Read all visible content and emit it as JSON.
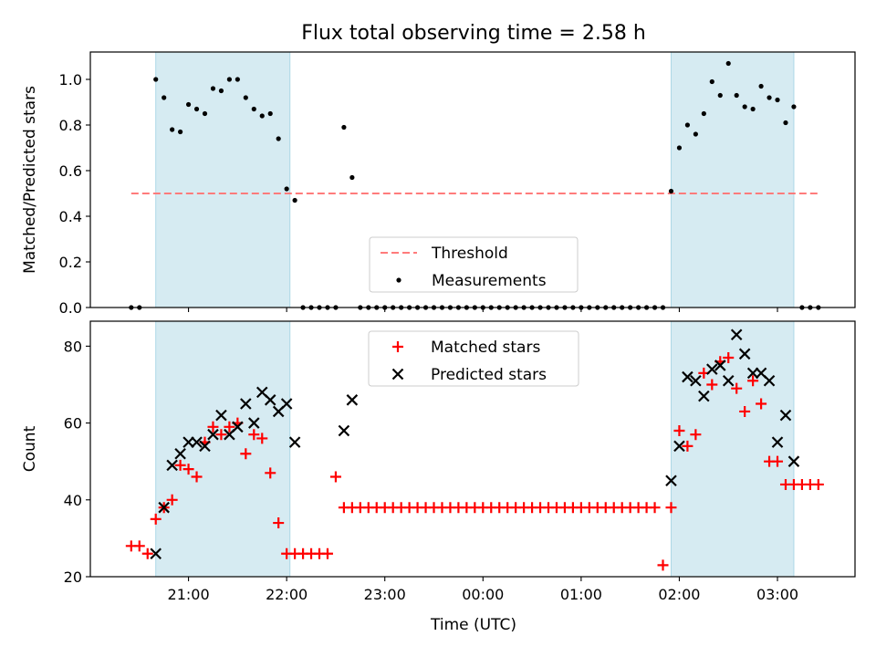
{
  "title": "Flux total observing time = 2.58 h",
  "colors": {
    "shade": "#add8e6",
    "threshold": "#ff7b7b",
    "measurement": "#000000",
    "matched": "#ff0000",
    "predicted": "#000000"
  },
  "chart_data": [
    {
      "type": "scatter",
      "ylabel": "Matched/Predicted stars",
      "ylim": [
        0,
        1.12
      ],
      "xlim_hours": [
        20.0,
        27.79
      ],
      "yticks": [
        0.0,
        0.2,
        0.4,
        0.6,
        0.8,
        1.0
      ],
      "ytick_labels": [
        "0.0",
        "0.2",
        "0.4",
        "0.6",
        "0.8",
        "1.0"
      ],
      "shaded_regions": [
        [
          "20:40",
          "22:02"
        ],
        [
          "01:55",
          "03:10"
        ]
      ],
      "legend": {
        "placement": "lower-center",
        "entries": [
          "Threshold",
          "Measurements"
        ]
      },
      "series": [
        {
          "name": "Threshold",
          "style": "dashed-line",
          "x": [
            "20:25",
            "03:25"
          ],
          "values": [
            0.5,
            0.5
          ]
        },
        {
          "name": "Measurements",
          "style": "dots",
          "x": [
            "20:25",
            "20:30",
            "20:40",
            "20:45",
            "20:50",
            "20:55",
            "21:00",
            "21:05",
            "21:10",
            "21:15",
            "21:20",
            "21:25",
            "21:30",
            "21:35",
            "21:40",
            "21:45",
            "21:50",
            "21:55",
            "22:00",
            "22:05",
            "22:10",
            "22:15",
            "22:20",
            "22:25",
            "22:30",
            "22:35",
            "22:40",
            "22:45",
            "22:50",
            "22:55",
            "23:00",
            "23:05",
            "23:10",
            "23:15",
            "23:20",
            "23:25",
            "23:30",
            "23:35",
            "23:40",
            "23:45",
            "23:50",
            "23:55",
            "00:00",
            "00:05",
            "00:10",
            "00:15",
            "00:20",
            "00:25",
            "00:30",
            "00:35",
            "00:40",
            "00:45",
            "00:50",
            "00:55",
            "01:00",
            "01:05",
            "01:10",
            "01:15",
            "01:20",
            "01:25",
            "01:30",
            "01:35",
            "01:40",
            "01:45",
            "01:50",
            "01:55",
            "02:00",
            "02:05",
            "02:10",
            "02:15",
            "02:20",
            "02:25",
            "02:30",
            "02:35",
            "02:40",
            "02:45",
            "02:50",
            "02:55",
            "03:00",
            "03:05",
            "03:10",
            "03:15",
            "03:20",
            "03:25"
          ],
          "values": [
            0,
            0,
            1.0,
            0.92,
            0.78,
            0.77,
            0.89,
            0.87,
            0.85,
            0.96,
            0.95,
            1.0,
            1.0,
            0.92,
            0.87,
            0.84,
            0.85,
            0.74,
            0.52,
            0.47,
            0,
            0,
            0,
            0,
            0,
            0.79,
            0.57,
            0,
            0,
            0,
            0,
            0,
            0,
            0,
            0,
            0,
            0,
            0,
            0,
            0,
            0,
            0,
            0,
            0,
            0,
            0,
            0,
            0,
            0,
            0,
            0,
            0,
            0,
            0,
            0,
            0,
            0,
            0,
            0,
            0,
            0,
            0,
            0,
            0,
            0,
            0.51,
            0.7,
            0.8,
            0.76,
            0.85,
            0.99,
            0.93,
            1.07,
            0.93,
            0.88,
            0.87,
            0.97,
            0.92,
            0.91,
            0.81,
            0.88,
            0,
            0,
            0
          ]
        }
      ]
    },
    {
      "type": "scatter",
      "ylabel": "Count",
      "xlabel": "Time (UTC)",
      "ylim": [
        20,
        86.5
      ],
      "xlim_hours": [
        20.0,
        27.79
      ],
      "yticks": [
        20,
        40,
        60,
        80
      ],
      "ytick_labels": [
        "20",
        "40",
        "60",
        "80"
      ],
      "xticks_hours": [
        21,
        22,
        23,
        24,
        25,
        26,
        27
      ],
      "xtick_labels": [
        "21:00",
        "22:00",
        "23:00",
        "00:00",
        "01:00",
        "02:00",
        "03:00"
      ],
      "shaded_regions": [
        [
          "20:40",
          "22:02"
        ],
        [
          "01:55",
          "03:10"
        ]
      ],
      "legend": {
        "placement": "upper-center",
        "entries": [
          "Matched stars",
          "Predicted stars"
        ]
      },
      "series": [
        {
          "name": "Matched stars",
          "marker": "+",
          "x": [
            "20:25",
            "20:30",
            "20:35",
            "20:40",
            "20:45",
            "20:50",
            "20:55",
            "21:00",
            "21:05",
            "21:10",
            "21:15",
            "21:20",
            "21:25",
            "21:30",
            "21:35",
            "21:40",
            "21:45",
            "21:50",
            "21:55",
            "22:00",
            "22:05",
            "22:10",
            "22:15",
            "22:20",
            "22:25",
            "22:30",
            "22:35",
            "22:40",
            "22:45",
            "22:50",
            "22:55",
            "23:00",
            "23:05",
            "23:10",
            "23:15",
            "23:20",
            "23:25",
            "23:30",
            "23:35",
            "23:40",
            "23:45",
            "23:50",
            "23:55",
            "00:00",
            "00:05",
            "00:10",
            "00:15",
            "00:20",
            "00:25",
            "00:30",
            "00:35",
            "00:40",
            "00:45",
            "00:50",
            "00:55",
            "01:00",
            "01:05",
            "01:10",
            "01:15",
            "01:20",
            "01:25",
            "01:30",
            "01:35",
            "01:40",
            "01:45",
            "01:50",
            "01:55",
            "02:00",
            "02:05",
            "02:10",
            "02:15",
            "02:20",
            "02:25",
            "02:30",
            "02:35",
            "02:40",
            "02:45",
            "02:50",
            "02:55",
            "03:00",
            "03:05",
            "03:10",
            "03:15",
            "03:20",
            "03:25"
          ],
          "values": [
            28,
            28,
            26,
            35,
            38,
            40,
            49,
            48,
            46,
            55,
            59,
            57,
            59,
            60,
            52,
            57,
            56,
            47,
            34,
            26,
            26,
            26,
            26,
            26,
            26,
            46,
            38,
            38,
            38,
            38,
            38,
            38,
            38,
            38,
            38,
            38,
            38,
            38,
            38,
            38,
            38,
            38,
            38,
            38,
            38,
            38,
            38,
            38,
            38,
            38,
            38,
            38,
            38,
            38,
            38,
            38,
            38,
            38,
            38,
            38,
            38,
            38,
            38,
            38,
            38,
            23,
            38,
            58,
            54,
            57,
            73,
            70,
            76,
            77,
            69,
            63,
            71,
            65,
            50,
            50,
            44,
            44,
            44,
            44,
            44
          ]
        },
        {
          "name": "Predicted stars",
          "marker": "x",
          "x": [
            "20:40",
            "20:45",
            "20:50",
            "20:55",
            "21:00",
            "21:05",
            "21:10",
            "21:15",
            "21:20",
            "21:25",
            "21:30",
            "21:35",
            "21:40",
            "21:45",
            "21:50",
            "21:55",
            "22:00",
            "22:05",
            "22:35",
            "22:40",
            "01:55",
            "02:00",
            "02:05",
            "02:10",
            "02:15",
            "02:20",
            "02:25",
            "02:30",
            "02:35",
            "02:40",
            "02:45",
            "02:50",
            "02:55",
            "03:00",
            "03:05",
            "03:10"
          ],
          "values": [
            26,
            38,
            49,
            52,
            55,
            55,
            54,
            57,
            62,
            57,
            59,
            65,
            60,
            68,
            66,
            63,
            65,
            55,
            58,
            66,
            45,
            54,
            72,
            71,
            67,
            74,
            75,
            71,
            83,
            78,
            73,
            73,
            71,
            55,
            62,
            50
          ]
        }
      ]
    }
  ]
}
